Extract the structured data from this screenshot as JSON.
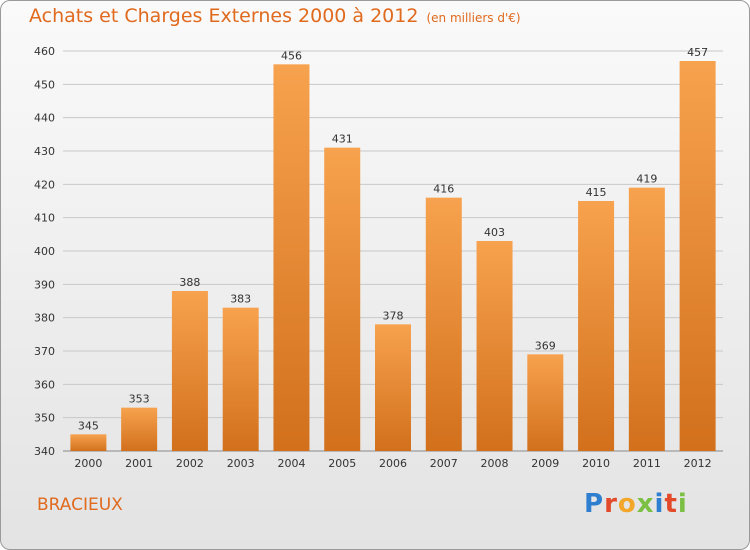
{
  "header": {
    "title": "Achats et Charges Externes 2000 à 2012",
    "subtitle": "(en milliers d'€)"
  },
  "footer": {
    "city": "BRACIEUX",
    "logo": [
      "P",
      "r",
      "o",
      "x",
      "i",
      "t",
      "i"
    ]
  },
  "colors": {
    "accent": "#e06a1e",
    "bar_light": "#f7a24e",
    "bar_dark": "#d2701c",
    "logo": [
      "#2f7fd1",
      "#e24a2a",
      "#f2a72a",
      "#7bc043",
      "#2f7fd1",
      "#e24a2a",
      "#7bc043"
    ]
  },
  "chart_data": {
    "type": "bar",
    "categories": [
      "2000",
      "2001",
      "2002",
      "2003",
      "2004",
      "2005",
      "2006",
      "2007",
      "2008",
      "2009",
      "2010",
      "2011",
      "2012"
    ],
    "values": [
      345,
      353,
      388,
      383,
      456,
      431,
      378,
      416,
      403,
      369,
      415,
      419,
      457
    ],
    "ylim": [
      340,
      460
    ],
    "yticks": [
      340,
      350,
      360,
      370,
      380,
      390,
      400,
      410,
      420,
      430,
      440,
      450,
      460
    ],
    "grid": true
  }
}
